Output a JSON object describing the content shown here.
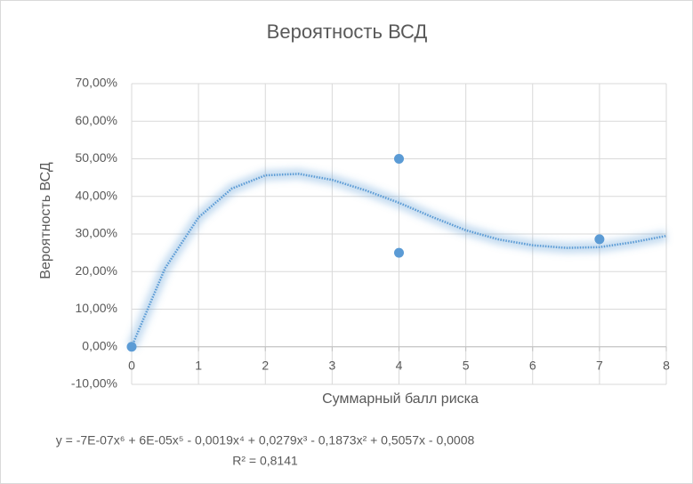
{
  "chart_data": {
    "type": "scatter",
    "title": "Вероятность ВСД",
    "x_label": "Суммарный балл риска",
    "y_label": "Вероятность ВСД",
    "series": [
      {
        "type": "scatter",
        "color": "#5b9bd5",
        "x": [
          0,
          4,
          4,
          7
        ],
        "values": [
          0,
          50,
          25,
          28.6
        ]
      },
      {
        "type": "line",
        "color": "#5b9bd5",
        "x": [
          0,
          0.5,
          1,
          1.5,
          2,
          2.5,
          3,
          3.5,
          4,
          4.5,
          5,
          5.5,
          6,
          6.5,
          7,
          7.5,
          8
        ],
        "values": [
          0,
          20.9,
          34.4,
          42.1,
          45.6,
          46.0,
          44.4,
          41.6,
          38.3,
          34.5,
          31.0,
          28.5,
          27.0,
          26.3,
          26.5,
          27.8,
          29.5
        ]
      }
    ],
    "annotations": [
      "y = -7E-07x⁶ + 6E-05x⁵ - 0,0019x⁴ + 0,0279x³ - 0,1873x² + 0,5057x - 0,0008",
      "R² = 0,8141"
    ],
    "xlim": [
      0,
      8
    ],
    "xticks": [
      0,
      1,
      2,
      3,
      4,
      5,
      6,
      7,
      8
    ],
    "ylim": [
      -10,
      70
    ],
    "yticks": [
      {
        "value": -10,
        "label": "-10,00%"
      },
      {
        "value": 0,
        "label": "0,00%"
      },
      {
        "value": 10,
        "label": "10,00%"
      },
      {
        "value": 20,
        "label": "20,00%"
      },
      {
        "value": 30,
        "label": "30,00%"
      },
      {
        "value": 40,
        "label": "40,00%"
      },
      {
        "value": 50,
        "label": "50,00%"
      },
      {
        "value": 60,
        "label": "60,00%"
      },
      {
        "value": 70,
        "label": "70,00%"
      }
    ],
    "grid": true
  }
}
